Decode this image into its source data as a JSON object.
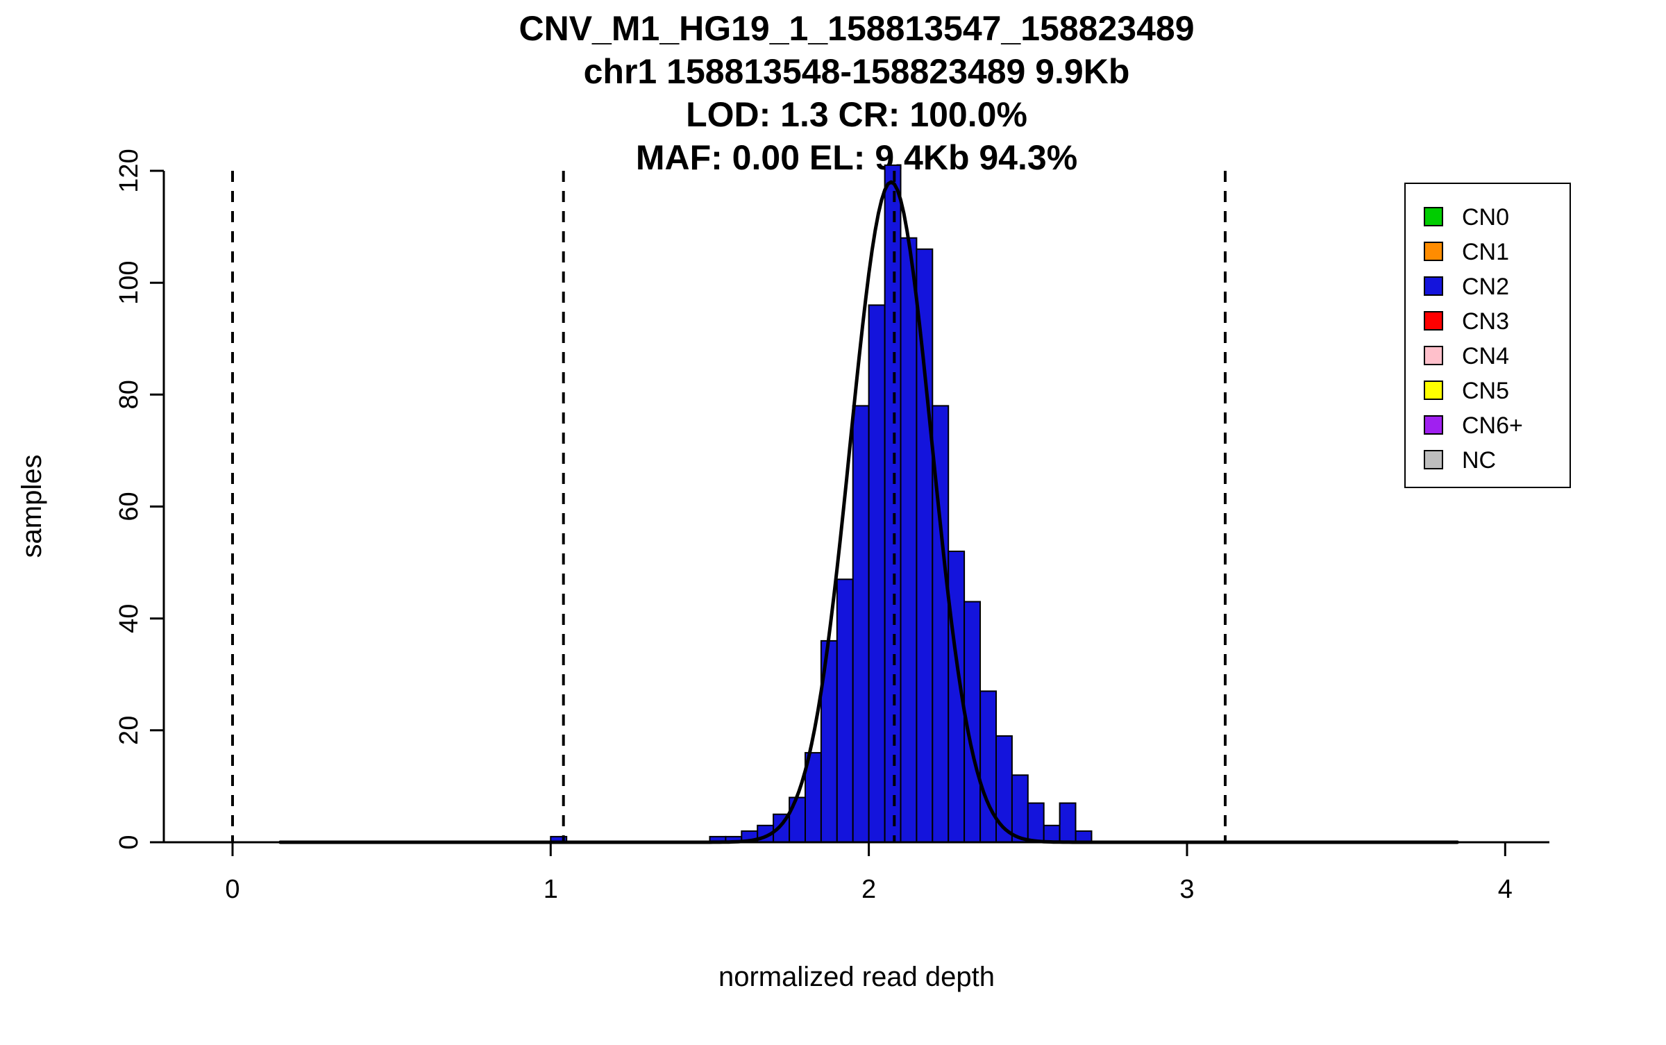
{
  "chart_data": {
    "type": "bar",
    "subtype": "histogram_with_gaussian_fit",
    "title_lines": [
      "CNV_M1_HG19_1_158813547_158823489",
      "chr1 158813548-158823489 9.9Kb",
      "LOD: 1.3 CR: 100.0%",
      "MAF: 0.00 EL: 9.4Kb 94.3%"
    ],
    "xlabel": "normalized read depth",
    "ylabel": "samples",
    "xlim": [
      -0.216,
      4.139
    ],
    "ylim": [
      0,
      120
    ],
    "x_ticks": [
      0,
      1,
      2,
      3,
      4
    ],
    "y_ticks": [
      0,
      20,
      40,
      60,
      80,
      100,
      120
    ],
    "grid": false,
    "bin_width": 0.05,
    "bar_color": "#1414dc",
    "bar_border_color": "#000000",
    "bins": [
      {
        "x": 1.0,
        "n": 1
      },
      {
        "x": 1.5,
        "n": 1
      },
      {
        "x": 1.55,
        "n": 1
      },
      {
        "x": 1.6,
        "n": 2
      },
      {
        "x": 1.65,
        "n": 3
      },
      {
        "x": 1.7,
        "n": 5
      },
      {
        "x": 1.75,
        "n": 8
      },
      {
        "x": 1.8,
        "n": 16
      },
      {
        "x": 1.85,
        "n": 36
      },
      {
        "x": 1.9,
        "n": 47
      },
      {
        "x": 1.95,
        "n": 78
      },
      {
        "x": 2.0,
        "n": 96
      },
      {
        "x": 2.05,
        "n": 121
      },
      {
        "x": 2.1,
        "n": 108
      },
      {
        "x": 2.15,
        "n": 106
      },
      {
        "x": 2.2,
        "n": 78
      },
      {
        "x": 2.25,
        "n": 52
      },
      {
        "x": 2.3,
        "n": 43
      },
      {
        "x": 2.35,
        "n": 27
      },
      {
        "x": 2.4,
        "n": 19
      },
      {
        "x": 2.45,
        "n": 12
      },
      {
        "x": 2.5,
        "n": 7
      },
      {
        "x": 2.55,
        "n": 3
      },
      {
        "x": 2.6,
        "n": 7
      },
      {
        "x": 2.65,
        "n": 2
      }
    ],
    "curve": {
      "shape": "gaussian",
      "mean": 2.07,
      "sd": 0.128,
      "peak": 118,
      "range": [
        0.15,
        3.85
      ],
      "color": "#000000"
    },
    "dashed_lines": {
      "x": [
        0,
        1.04,
        2.08,
        3.12
      ],
      "color": "#000000",
      "style": "dashed"
    },
    "legend": {
      "position": "top-right",
      "entries": [
        {
          "label": "CN0",
          "color": "#00cd00"
        },
        {
          "label": "CN1",
          "color": "#ff8c00"
        },
        {
          "label": "CN2",
          "color": "#1414dc"
        },
        {
          "label": "CN3",
          "color": "#ff0000"
        },
        {
          "label": "CN4",
          "color": "#ffc0cb"
        },
        {
          "label": "CN5",
          "color": "#ffff00"
        },
        {
          "label": "CN6+",
          "color": "#a020f0"
        },
        {
          "label": "NC",
          "color": "#bebebe"
        }
      ]
    }
  }
}
